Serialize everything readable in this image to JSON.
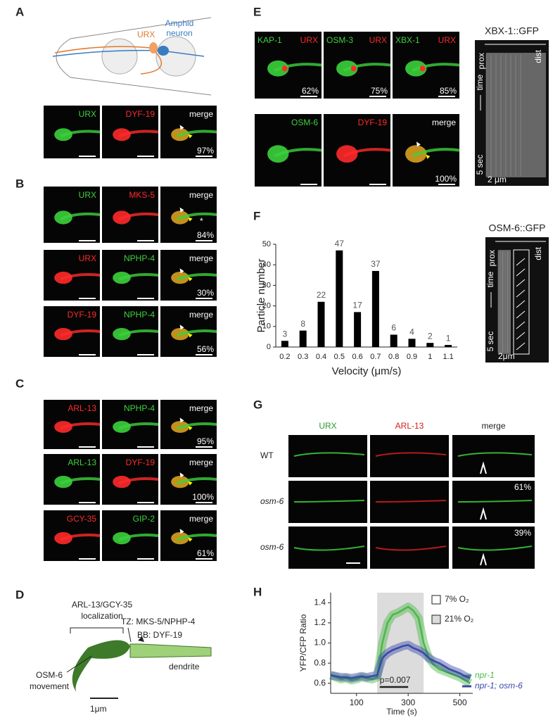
{
  "panel_labels": [
    "A",
    "B",
    "C",
    "D",
    "E",
    "F",
    "G",
    "H"
  ],
  "A": {
    "schematic": {
      "urx": "URX",
      "amphid": [
        "Amphid",
        "neuron"
      ]
    },
    "rows": [
      [
        {
          "labels": [
            {
              "text": "URX",
              "color": "#3cd23c"
            }
          ]
        },
        {
          "labels": [
            {
              "text": "DYF-19",
              "color": "#ff2a2a"
            }
          ]
        },
        {
          "labels": [
            {
              "text": "merge",
              "color": "#ffffff"
            }
          ],
          "percent": "97%"
        }
      ]
    ]
  },
  "B": {
    "rows": [
      [
        {
          "labels": [
            {
              "text": "URX",
              "color": "#3cd23c"
            }
          ]
        },
        {
          "labels": [
            {
              "text": "MKS-5",
              "color": "#ff2a2a"
            }
          ]
        },
        {
          "labels": [
            {
              "text": "merge",
              "color": "#ffffff"
            }
          ],
          "percent": "84%",
          "note": "*"
        }
      ],
      [
        {
          "labels": [
            {
              "text": "URX",
              "color": "#ff2a2a"
            }
          ]
        },
        {
          "labels": [
            {
              "text": "NPHP-4",
              "color": "#3cd23c"
            }
          ]
        },
        {
          "labels": [
            {
              "text": "merge",
              "color": "#ffffff"
            }
          ],
          "percent": "30%"
        }
      ],
      [
        {
          "labels": [
            {
              "text": "DYF-19",
              "color": "#ff2a2a"
            }
          ]
        },
        {
          "labels": [
            {
              "text": "NPHP-4",
              "color": "#3cd23c"
            }
          ]
        },
        {
          "labels": [
            {
              "text": "merge",
              "color": "#ffffff"
            }
          ],
          "percent": "56%"
        }
      ]
    ]
  },
  "C": {
    "rows": [
      [
        {
          "labels": [
            {
              "text": "ARL-13",
              "color": "#ff2a2a"
            }
          ]
        },
        {
          "labels": [
            {
              "text": "NPHP-4",
              "color": "#3cd23c"
            }
          ]
        },
        {
          "labels": [
            {
              "text": "merge",
              "color": "#ffffff"
            }
          ],
          "percent": "95%"
        }
      ],
      [
        {
          "labels": [
            {
              "text": "ARL-13",
              "color": "#3cd23c"
            }
          ]
        },
        {
          "labels": [
            {
              "text": "DYF-19",
              "color": "#ff2a2a"
            }
          ]
        },
        {
          "labels": [
            {
              "text": "merge",
              "color": "#ffffff"
            }
          ],
          "percent": "100%"
        }
      ],
      [
        {
          "labels": [
            {
              "text": "GCY-35",
              "color": "#ff2a2a"
            }
          ]
        },
        {
          "labels": [
            {
              "text": "GIP-2",
              "color": "#3cd23c"
            }
          ]
        },
        {
          "labels": [
            {
              "text": "merge",
              "color": "#ffffff"
            }
          ],
          "percent": "61%"
        }
      ]
    ]
  },
  "D": {
    "localization": [
      "ARL-13/GCY-35",
      "localization"
    ],
    "tz": "TZ: MKS-5/NPHP-4",
    "bb": "BB: DYF-19",
    "movement": [
      "OSM-6",
      "movement"
    ],
    "dendrite": "dendrite",
    "scale": "1μm"
  },
  "E": {
    "rows": [
      [
        {
          "labels": [
            {
              "text": "KAP-1",
              "color": "#3cd23c"
            },
            {
              "text": "URX",
              "color": "#ff2a2a"
            }
          ],
          "percent": "62%"
        },
        {
          "labels": [
            {
              "text": "OSM-3",
              "color": "#3cd23c"
            },
            {
              "text": "URX",
              "color": "#ff2a2a"
            }
          ],
          "percent": "75%"
        },
        {
          "labels": [
            {
              "text": "XBX-1",
              "color": "#3cd23c"
            },
            {
              "text": "URX",
              "color": "#ff2a2a"
            }
          ],
          "percent": "85%"
        }
      ],
      [
        {
          "labels": [
            {
              "text": "OSM-6",
              "color": "#3cd23c"
            }
          ]
        },
        {
          "labels": [
            {
              "text": "DYF-19",
              "color": "#ff2a2a"
            }
          ]
        },
        {
          "labels": [
            {
              "text": "merge",
              "color": "#ffffff"
            }
          ],
          "percent": "100%"
        }
      ]
    ],
    "kymograph": {
      "title": "XBX-1::GFP",
      "prox": "prox",
      "dist": "dist",
      "time": "time",
      "time_scale": "5 sec",
      "length_scale": "2 μm"
    }
  },
  "F": {
    "kymograph": {
      "title": "OSM-6::GFP",
      "prox": "prox",
      "dist": "dist",
      "time": "time",
      "time_scale": "5 sec",
      "length_scale": "2μm"
    }
  },
  "G": {
    "columns": [
      {
        "text": "URX",
        "color": "#2a9a2a"
      },
      {
        "text": "ARL-13",
        "color": "#d42020"
      },
      {
        "text": "merge",
        "color": "#222222"
      }
    ],
    "rows": [
      {
        "label": "WT"
      },
      {
        "label": "osm-6",
        "percent": "61%"
      },
      {
        "label": "osm-6",
        "percent": "39%"
      }
    ]
  },
  "chart_data": [
    {
      "type": "bar",
      "x_label": "Velocity (μm/s)",
      "y_label": "Particle number",
      "categories": [
        "0.2",
        "0.3",
        "0.4",
        "0.5",
        "0.6",
        "0.7",
        "0.8",
        "0.9",
        "1",
        "1.1"
      ],
      "values": [
        3,
        8,
        22,
        47,
        17,
        37,
        6,
        4,
        2,
        1
      ],
      "color": "#000000",
      "ylim": [
        0,
        50
      ],
      "yticks": [
        0,
        10,
        20,
        30,
        40,
        50
      ]
    },
    {
      "type": "line",
      "x_label": "Time (s)",
      "y_label": "YFP/CFP Ratio",
      "x": [
        0,
        20,
        40,
        60,
        80,
        100,
        120,
        140,
        160,
        180,
        200,
        220,
        240,
        260,
        280,
        300,
        320,
        340,
        360,
        380,
        400,
        420,
        440,
        460,
        480,
        500,
        520,
        540
      ],
      "series": [
        {
          "name": "npr-1",
          "color": "#4cb848",
          "values": [
            0.68,
            0.66,
            0.64,
            0.65,
            0.63,
            0.64,
            0.66,
            0.65,
            0.64,
            0.66,
            1.0,
            1.2,
            1.28,
            1.3,
            1.33,
            1.36,
            1.32,
            1.25,
            1.0,
            0.85,
            0.78,
            0.74,
            0.72,
            0.7,
            0.68,
            0.66,
            0.63,
            0.6
          ]
        },
        {
          "name": "npr-1; osm-6",
          "color": "#3848a8",
          "values": [
            0.68,
            0.67,
            0.66,
            0.66,
            0.65,
            0.66,
            0.67,
            0.66,
            0.67,
            0.68,
            0.85,
            0.9,
            0.93,
            0.95,
            0.97,
            0.98,
            0.95,
            0.93,
            0.9,
            0.85,
            0.82,
            0.8,
            0.77,
            0.74,
            0.72,
            0.7,
            0.67,
            0.65
          ]
        }
      ],
      "xlim": [
        0,
        550
      ],
      "xticks": [
        100,
        300,
        500
      ],
      "ylim": [
        0.5,
        1.5
      ],
      "yticks": [
        0.6,
        0.8,
        {
          "value": 1.0,
          "label": "1.0"
        },
        1.2,
        1.4
      ],
      "shaded_range": [
        180,
        360
      ],
      "legend": [
        "7% O₂",
        "21% O₂"
      ],
      "annotation": "p=0.007"
    }
  ]
}
